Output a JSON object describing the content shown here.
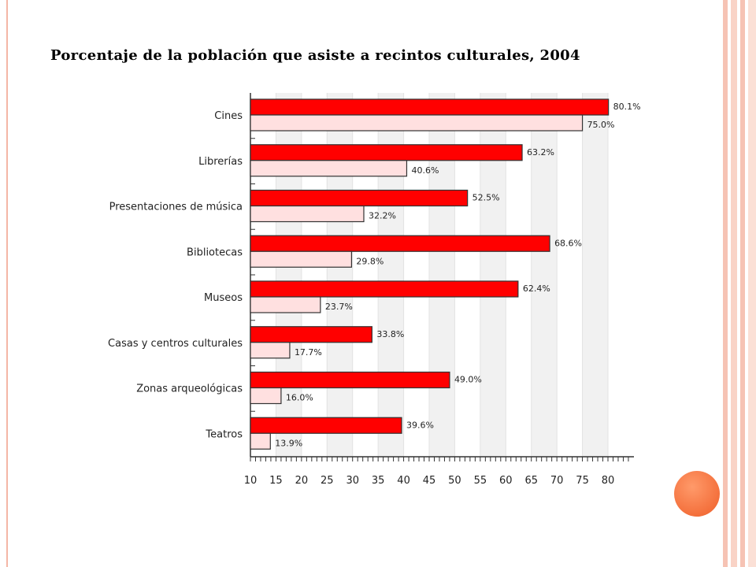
{
  "chart_data": {
    "type": "bar",
    "orientation": "horizontal",
    "title": "Porcentaje de la población que asiste a recintos culturales, 2004",
    "categories": [
      "Cines",
      "Librerías",
      "Presentaciones de música",
      "Bibliotecas",
      "Museos",
      "Casas y centros culturales",
      "Zonas arqueológicas",
      "Teatros"
    ],
    "series": [
      {
        "values": [
          80.1,
          63.2,
          52.5,
          68.6,
          62.4,
          33.8,
          49.0,
          39.6
        ],
        "labels": [
          "80.1%",
          "63.2%",
          "52.5%",
          "68.6%",
          "62.4%",
          "33.8%",
          "49.0%",
          "39.6%"
        ],
        "color": "#ff0000"
      },
      {
        "values": [
          75.0,
          40.6,
          32.2,
          29.8,
          23.7,
          17.7,
          16.0,
          13.9
        ],
        "labels": [
          "75.0%",
          "40.6%",
          "32.2%",
          "29.8%",
          "23.7%",
          "17.7%",
          "16.0%",
          "13.9%"
        ],
        "color": "#ffe0e0"
      }
    ],
    "xlim": [
      10,
      80
    ],
    "xticks": [
      "10",
      "15",
      "20",
      "25",
      "30",
      "35",
      "40",
      "45",
      "50",
      "55",
      "60",
      "65",
      "70",
      "75",
      "80"
    ],
    "grid": "vertical bands"
  }
}
